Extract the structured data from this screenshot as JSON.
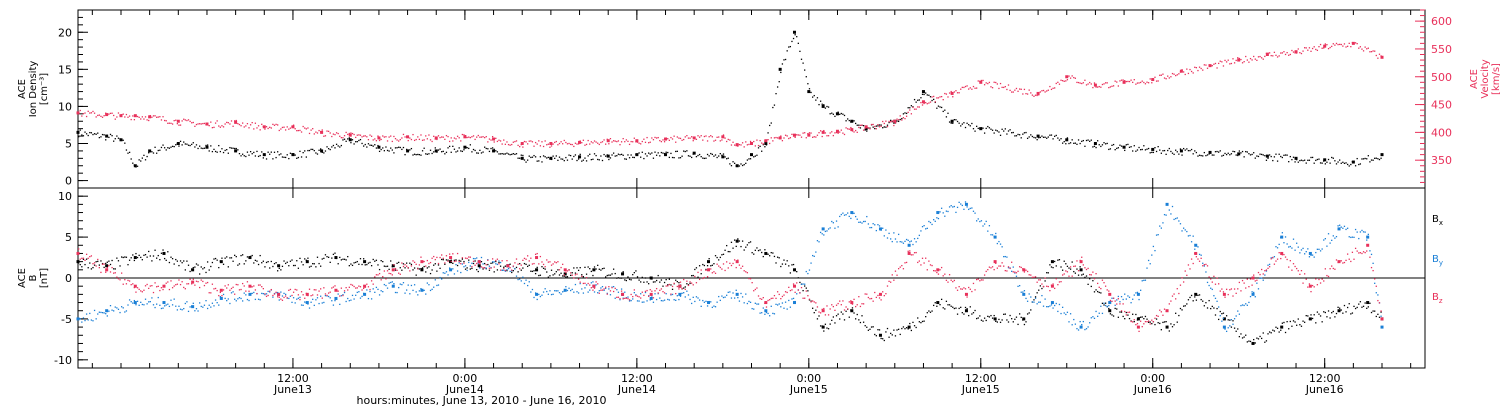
{
  "chart_data": [
    {
      "type": "scatter",
      "panel": "top",
      "ylabel_left": [
        "ACE",
        "Ion Density",
        "[cm⁻³]"
      ],
      "ylabel_right": [
        "ACE",
        "Velocity",
        "[km/s]"
      ],
      "xlim": [
        -15,
        79
      ],
      "ylim_left": [
        -1,
        23
      ],
      "ylim_right": [
        300,
        620
      ],
      "y_ticks_left": [
        0,
        5,
        10,
        15,
        20
      ],
      "y_ticks_right": [
        350,
        400,
        450,
        500,
        550,
        600
      ],
      "right_axis_color": "#e8305a",
      "series": [
        {
          "axis": "left",
          "color": "#000000",
          "x": [
            -15,
            -13,
            -12,
            -11,
            -10,
            -8,
            -6,
            -4,
            -2,
            0,
            2,
            4,
            6,
            8,
            10,
            12,
            14,
            16,
            18,
            20,
            22,
            24,
            26,
            28,
            30,
            31,
            32,
            33,
            34,
            35,
            36,
            37,
            38,
            39,
            40,
            42,
            44,
            46,
            48,
            52,
            54,
            56,
            58,
            60,
            62,
            64,
            66,
            68,
            70,
            72,
            74,
            76
          ],
          "y": [
            6.5,
            6,
            5.5,
            2,
            4,
            5,
            4.5,
            4,
            3.5,
            3.5,
            4,
            5.5,
            4.5,
            4,
            4,
            4.5,
            4,
            3,
            3,
            3.2,
            3.3,
            3.5,
            3.5,
            3.7,
            3.2,
            2,
            3.5,
            5,
            15,
            20,
            12,
            10,
            9,
            8,
            7,
            8,
            12,
            8,
            7,
            6,
            5.5,
            5,
            4.5,
            4.2,
            4,
            3.8,
            3.6,
            3.3,
            3,
            2.8,
            2.5,
            3.5
          ]
        },
        {
          "axis": "right",
          "color": "#e8305a",
          "x": [
            -15,
            -13,
            -12,
            -11,
            -10,
            -8,
            -6,
            -4,
            -2,
            0,
            2,
            4,
            6,
            8,
            10,
            12,
            14,
            16,
            18,
            20,
            22,
            24,
            26,
            28,
            30,
            31,
            32,
            33,
            34,
            35,
            36,
            37,
            38,
            39,
            40,
            42,
            44,
            46,
            48,
            52,
            54,
            56,
            58,
            60,
            62,
            64,
            66,
            68,
            70,
            72,
            74,
            76
          ],
          "y": [
            435,
            432,
            430,
            430,
            428,
            420,
            415,
            418,
            410,
            410,
            400,
            395,
            390,
            392,
            390,
            392,
            388,
            380,
            380,
            382,
            385,
            385,
            388,
            390,
            392,
            378,
            380,
            385,
            390,
            395,
            395,
            400,
            402,
            405,
            410,
            420,
            455,
            470,
            490,
            470,
            500,
            485,
            490,
            495,
            510,
            520,
            530,
            540,
            545,
            555,
            560,
            535
          ]
        }
      ]
    },
    {
      "type": "scatter",
      "panel": "bottom",
      "ylabel_left": [
        "ACE",
        "B",
        "[nT]"
      ],
      "xlim": [
        -15,
        79
      ],
      "ylim": [
        -11,
        11
      ],
      "y_ticks": [
        -10,
        -5,
        0,
        5,
        10
      ],
      "series": [
        {
          "name": "Bx",
          "color": "#000000",
          "x": [
            -15,
            -13,
            -11,
            -9,
            -7,
            -5,
            -3,
            -1,
            1,
            3,
            5,
            7,
            9,
            11,
            13,
            15,
            17,
            19,
            21,
            23,
            25,
            27,
            29,
            31,
            33,
            35,
            37,
            39,
            41,
            43,
            45,
            47,
            49,
            51,
            53,
            55,
            57,
            59,
            61,
            63,
            65,
            67,
            69,
            71,
            73,
            75,
            76
          ],
          "y": [
            2,
            1.5,
            2.5,
            3,
            1,
            2,
            2.5,
            1.5,
            2,
            2.5,
            2,
            1.5,
            1,
            2,
            1.5,
            1.5,
            1,
            0.5,
            1,
            0.5,
            0,
            -1,
            2,
            4.5,
            3,
            1,
            -6,
            -4,
            -7,
            -6,
            -3,
            -4,
            -5,
            -5,
            2,
            1,
            -4,
            -5,
            -6,
            -2,
            -5,
            -8,
            -6,
            -5,
            -4,
            -3,
            -5
          ]
        },
        {
          "name": "By",
          "color": "#1a7fd6",
          "x": [
            -15,
            -13,
            -11,
            -9,
            -7,
            -5,
            -3,
            -1,
            1,
            3,
            5,
            7,
            9,
            11,
            13,
            15,
            17,
            19,
            21,
            23,
            25,
            27,
            29,
            31,
            33,
            35,
            37,
            39,
            41,
            43,
            45,
            47,
            49,
            51,
            53,
            55,
            57,
            59,
            61,
            63,
            65,
            67,
            69,
            71,
            73,
            75,
            76
          ],
          "y": [
            -5,
            -4,
            -3,
            -3,
            -3.5,
            -2.5,
            -2,
            -2,
            -3,
            -2.5,
            -2,
            -1,
            -1.5,
            1,
            2,
            1.5,
            -2,
            -1.5,
            -1,
            -2,
            -2.5,
            -2,
            -3,
            -2,
            -4,
            -3,
            6,
            8,
            6,
            4,
            8,
            9,
            5,
            -2,
            -3,
            -6,
            -3,
            -2,
            9,
            4,
            -6,
            -2,
            5,
            3,
            6,
            5,
            -6
          ]
        },
        {
          "name": "Bz",
          "color": "#e8305a",
          "x": [
            -15,
            -13,
            -11,
            -9,
            -7,
            -5,
            -3,
            -1,
            1,
            3,
            5,
            7,
            9,
            11,
            13,
            15,
            17,
            19,
            21,
            23,
            25,
            27,
            29,
            31,
            33,
            35,
            37,
            39,
            41,
            43,
            45,
            47,
            49,
            51,
            53,
            55,
            57,
            59,
            61,
            63,
            65,
            67,
            69,
            71,
            73,
            75,
            76
          ],
          "y": [
            3,
            1,
            -1,
            -1,
            -0.5,
            -1.5,
            -1,
            -2,
            -2,
            -1.5,
            -1,
            1,
            2,
            2.5,
            2,
            1.5,
            2.5,
            1,
            -1,
            -2,
            -2,
            -1,
            1,
            2,
            -3,
            -1,
            -4,
            -3,
            -2,
            3,
            1,
            -2,
            2,
            1,
            -1,
            2,
            -2,
            -6,
            -4,
            3,
            -2,
            0,
            3,
            -1,
            2,
            4,
            -5
          ]
        }
      ]
    }
  ],
  "axis": {
    "x_ticks": [
      {
        "x": 0,
        "time": "12:00",
        "date": "June13"
      },
      {
        "x": 12,
        "time": "0:00",
        "date": "June14"
      },
      {
        "x": 24,
        "time": "12:00",
        "date": "June14"
      },
      {
        "x": 36,
        "time": "0:00",
        "date": "June15"
      },
      {
        "x": 48,
        "time": "12:00",
        "date": "June15"
      },
      {
        "x": 60,
        "time": "0:00",
        "date": "June16"
      },
      {
        "x": 72,
        "time": "12:00",
        "date": "June16"
      }
    ],
    "xlabel": "hours:minutes, June 13, 2010 - June 16, 2010"
  },
  "legend": [
    {
      "label": "B",
      "sub": "x",
      "color": "#000000"
    },
    {
      "label": "B",
      "sub": "y",
      "color": "#1a7fd6"
    },
    {
      "label": "B",
      "sub": "z",
      "color": "#e8305a"
    }
  ]
}
